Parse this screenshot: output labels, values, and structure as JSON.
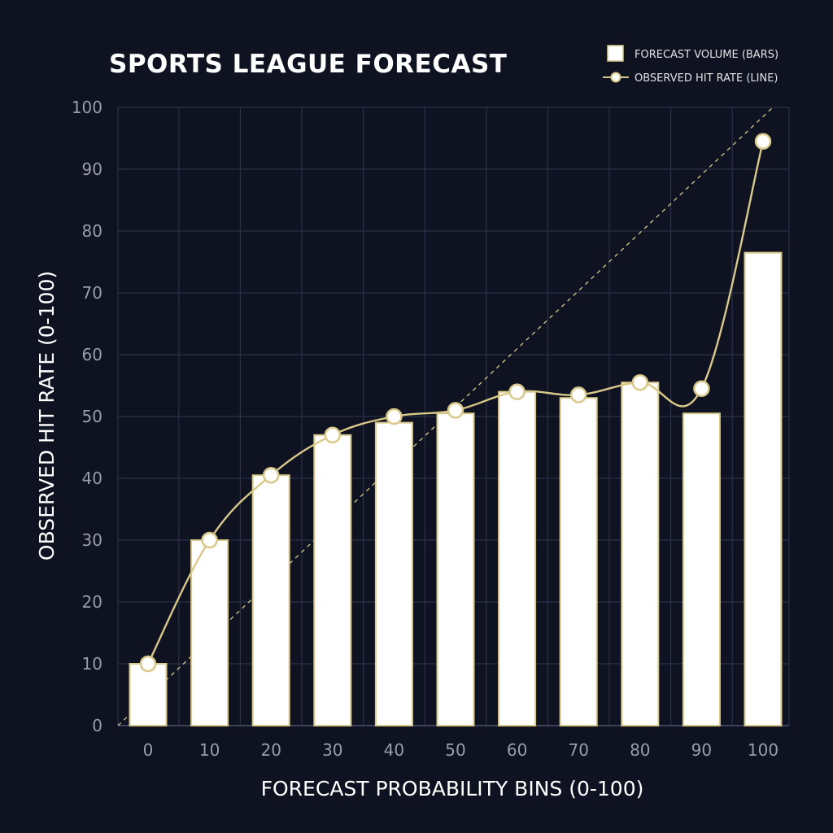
{
  "chart_data": {
    "type": "bar",
    "title": "SPORTS LEAGUE FORECAST",
    "xlabel": "FORECAST PROBABILITY BINS (0-100)",
    "ylabel": "OBSERVED HIT RATE (0-100)",
    "categories": [
      "0",
      "10",
      "20",
      "30",
      "40",
      "50",
      "60",
      "70",
      "80",
      "90",
      "100"
    ],
    "x": [
      0,
      10,
      20,
      30,
      40,
      50,
      60,
      70,
      80,
      90,
      100
    ],
    "ylim": [
      0,
      100
    ],
    "yticks": [
      "0",
      "10",
      "20",
      "30",
      "40",
      "50",
      "60",
      "70",
      "80",
      "90",
      "100"
    ],
    "grid": true,
    "legend_position": "top-right",
    "series": [
      {
        "name": "FORECAST VOLUME (BARS)",
        "kind": "bar",
        "values": [
          10,
          30,
          40.5,
          47,
          49,
          50.5,
          54,
          53,
          55.5,
          50.5,
          76.5
        ]
      },
      {
        "name": "OBSERVED HIT RATE (LINE)",
        "kind": "line",
        "values": [
          10,
          30,
          40.5,
          47,
          50,
          51,
          54,
          53.5,
          55.5,
          54.5,
          94.5
        ]
      }
    ],
    "reference_line": {
      "style": "dashed",
      "from": [
        0,
        0
      ],
      "to": [
        105,
        100
      ]
    },
    "colors": {
      "background": "#0f1221",
      "bar_fill": "#ffffff",
      "bar_stroke": "#d8c98a",
      "line": "#d8c98a",
      "marker_fill": "#ffffff",
      "grid": "#2c3148",
      "tick_text": "#9a9caa"
    }
  }
}
